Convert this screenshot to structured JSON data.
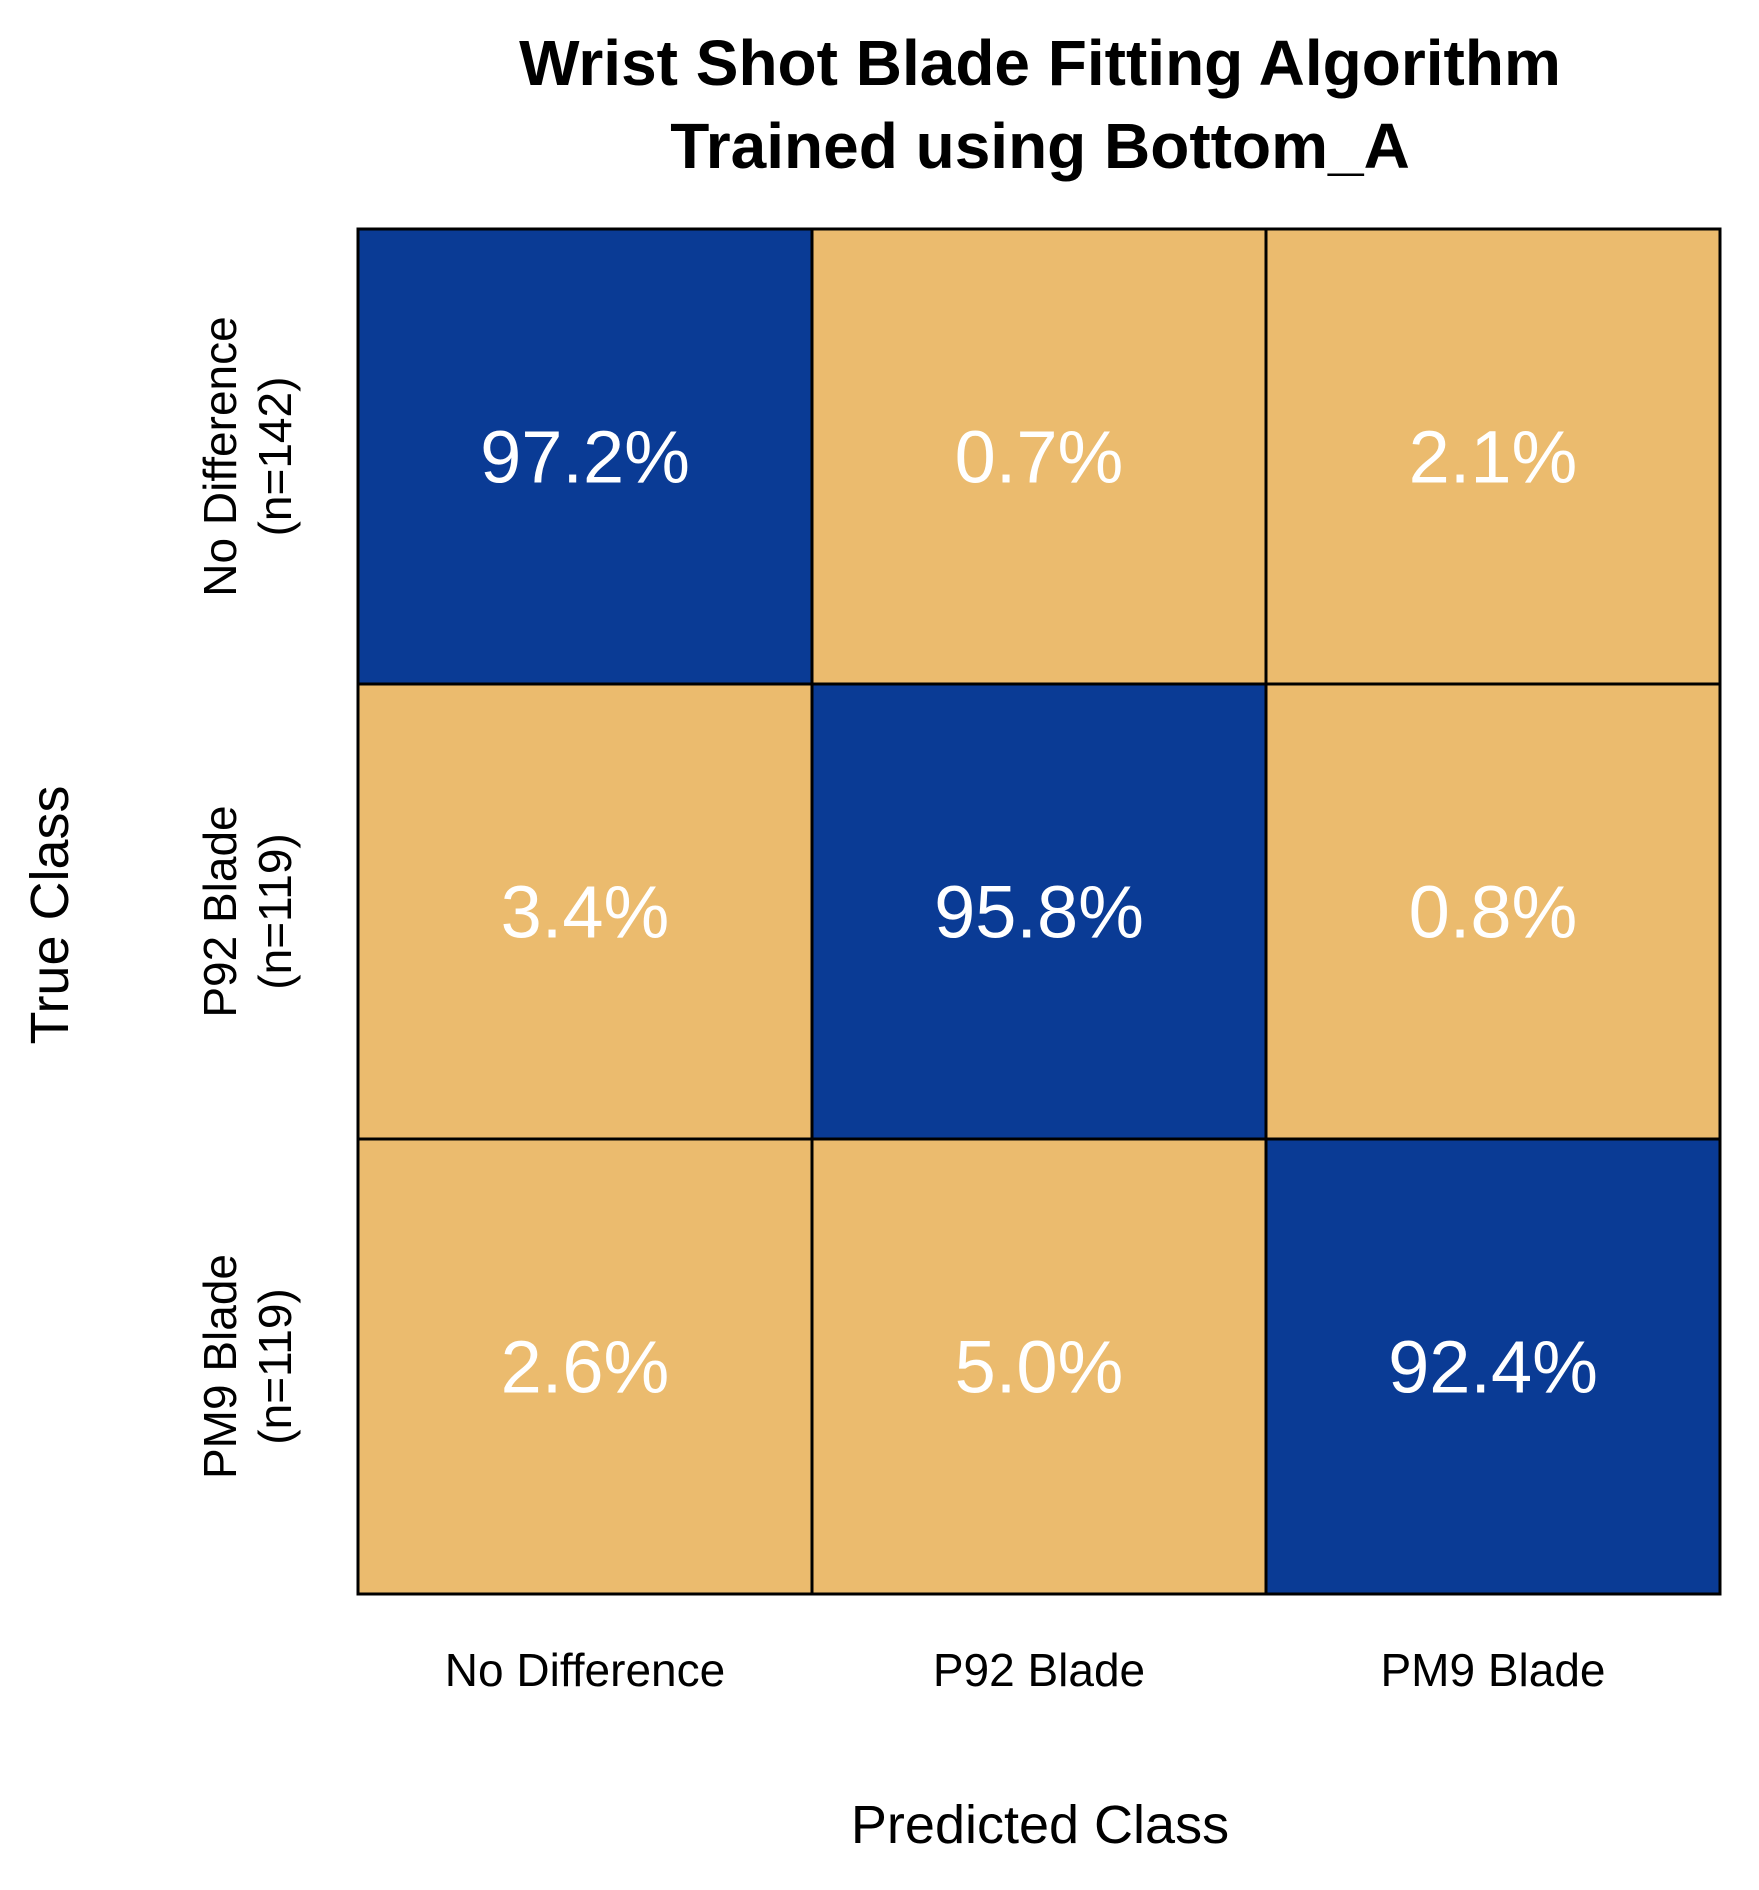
{
  "chart_data": {
    "type": "heatmap",
    "title": "Wrist Shot Blade Fitting Algorithm",
    "subtitle": "Trained using Bottom_A",
    "xlabel": "Predicted Class",
    "ylabel": "True Class",
    "x_categories": [
      "No Difference",
      "P92 Blade",
      "PM9 Blade"
    ],
    "y_categories": [
      {
        "name": "No Difference",
        "count": "(n=142)"
      },
      {
        "name": "P92 Blade",
        "count": "(n=119)"
      },
      {
        "name": "PM9 Blade",
        "count": "(n=119)"
      }
    ],
    "values": [
      [
        97.2,
        0.7,
        2.1
      ],
      [
        3.4,
        95.8,
        0.8
      ],
      [
        2.6,
        5.0,
        92.4
      ]
    ],
    "labels": [
      [
        "97.2%",
        "0.7%",
        "2.1%"
      ],
      [
        "3.4%",
        "95.8%",
        "0.8%"
      ],
      [
        "2.6%",
        "5.0%",
        "92.4%"
      ]
    ],
    "colors": {
      "diagonal": "#0a3b95",
      "off_diagonal": "#ebbb6e",
      "grid": "#000000",
      "cell_text": "#ffffff"
    }
  }
}
